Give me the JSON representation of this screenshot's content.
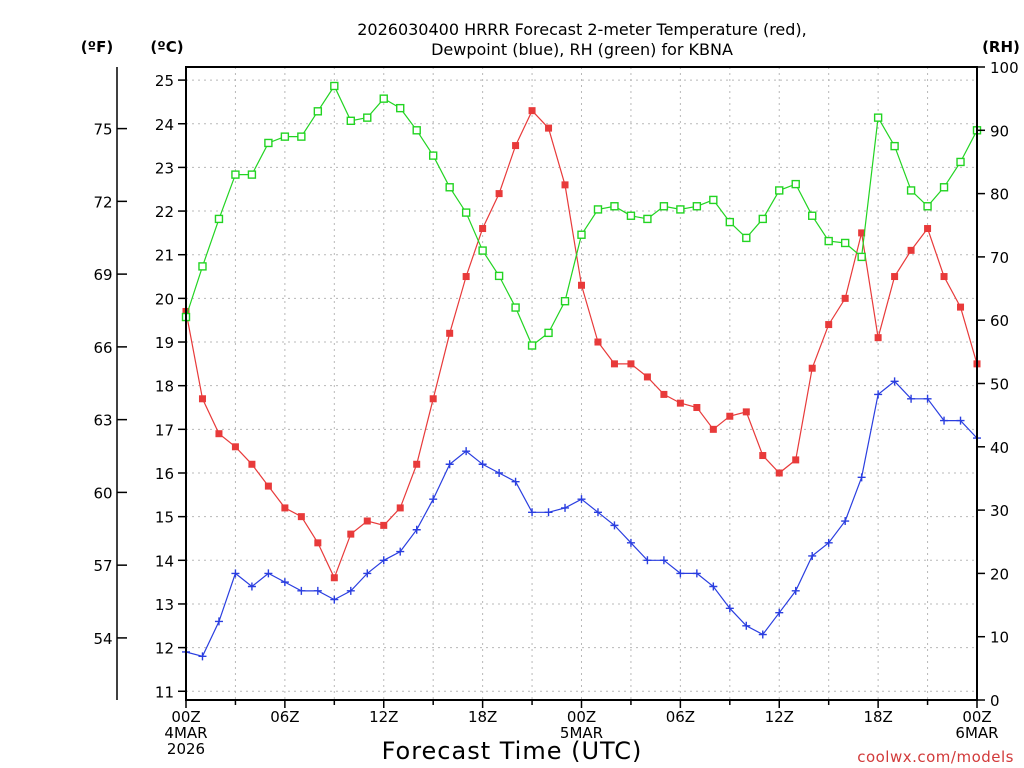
{
  "chart_data": {
    "type": "line",
    "title_lines": [
      "2026030400 HRRR Forecast 2-meter Temperature (red),",
      "Dewpoint (blue), RH (green) for KBNA"
    ],
    "xlabel": "Forecast Time (UTC)",
    "credit": "coolwx.com/models",
    "units": {
      "fahrenheit": "(ºF)",
      "celsius": "(ºC)",
      "rh": "(RH)"
    },
    "x_ticks": [
      {
        "hour": 0,
        "lines": [
          "00Z",
          "4MAR",
          "2026"
        ]
      },
      {
        "hour": 6,
        "lines": [
          "06Z"
        ]
      },
      {
        "hour": 12,
        "lines": [
          "12Z"
        ]
      },
      {
        "hour": 18,
        "lines": [
          "18Z"
        ]
      },
      {
        "hour": 24,
        "lines": [
          "00Z",
          "5MAR"
        ]
      },
      {
        "hour": 30,
        "lines": [
          "06Z"
        ]
      },
      {
        "hour": 36,
        "lines": [
          "12Z"
        ]
      },
      {
        "hour": 42,
        "lines": [
          "18Z"
        ]
      },
      {
        "hour": 48,
        "lines": [
          "00Z",
          "6MAR"
        ]
      }
    ],
    "xlim": [
      0,
      48
    ],
    "celsius_ylim": [
      10.8,
      25.3
    ],
    "celsius_ticks": [
      11,
      12,
      13,
      14,
      15,
      16,
      17,
      18,
      19,
      20,
      21,
      22,
      23,
      24,
      25
    ],
    "fahrenheit_ticks": [
      54,
      57,
      60,
      63,
      66,
      69,
      72,
      75
    ],
    "rh_ylim": [
      0,
      100
    ],
    "rh_ticks": [
      0,
      10,
      20,
      30,
      40,
      50,
      60,
      70,
      80,
      90,
      100
    ],
    "grid": true,
    "series": [
      {
        "name": "Temperature",
        "color": "#e83a3a",
        "axis": "celsius",
        "marker": "filled-square",
        "values": [
          19.7,
          17.7,
          16.9,
          16.6,
          16.2,
          15.7,
          15.2,
          15.0,
          14.4,
          13.6,
          14.6,
          14.9,
          14.8,
          15.2,
          16.2,
          17.7,
          19.2,
          20.5,
          21.6,
          22.4,
          23.5,
          24.3,
          23.9,
          22.6,
          20.3,
          19.0,
          18.5,
          18.5,
          18.2,
          17.8,
          17.6,
          17.5,
          17.0,
          17.3,
          17.4,
          16.4,
          16.0,
          16.3,
          18.4,
          19.4,
          20.0,
          21.5,
          19.1,
          20.5,
          21.1,
          21.6,
          20.5,
          19.8,
          18.5
        ]
      },
      {
        "name": "Dewpoint",
        "color": "#2a3ee0",
        "axis": "celsius",
        "marker": "plus",
        "values": [
          11.9,
          11.8,
          12.6,
          13.7,
          13.4,
          13.7,
          13.5,
          13.3,
          13.3,
          13.1,
          13.3,
          13.7,
          14.0,
          14.2,
          14.7,
          15.4,
          16.2,
          16.5,
          16.2,
          16.0,
          15.8,
          15.1,
          15.1,
          15.2,
          15.4,
          15.1,
          14.8,
          14.4,
          14.0,
          14.0,
          13.7,
          13.7,
          13.4,
          12.9,
          12.5,
          12.3,
          12.8,
          13.3,
          14.1,
          14.4,
          14.9,
          15.9,
          17.8,
          18.1,
          17.7,
          17.7,
          17.2,
          17.2,
          16.8
        ]
      },
      {
        "name": "RH",
        "color": "#22d422",
        "axis": "rh",
        "marker": "open-square",
        "values": [
          60.5,
          68.5,
          76,
          83,
          83,
          88,
          89,
          89,
          93,
          97,
          91.5,
          92,
          95,
          93.5,
          90,
          86,
          81,
          77,
          71,
          67,
          62,
          56,
          58,
          63,
          73.5,
          77.5,
          78,
          76.5,
          76,
          78,
          77.5,
          78,
          79,
          75.5,
          73,
          76,
          80.5,
          81.5,
          76.5,
          72.5,
          72.2,
          70,
          92,
          87.5,
          80.5,
          78,
          81,
          85,
          90
        ]
      }
    ]
  }
}
